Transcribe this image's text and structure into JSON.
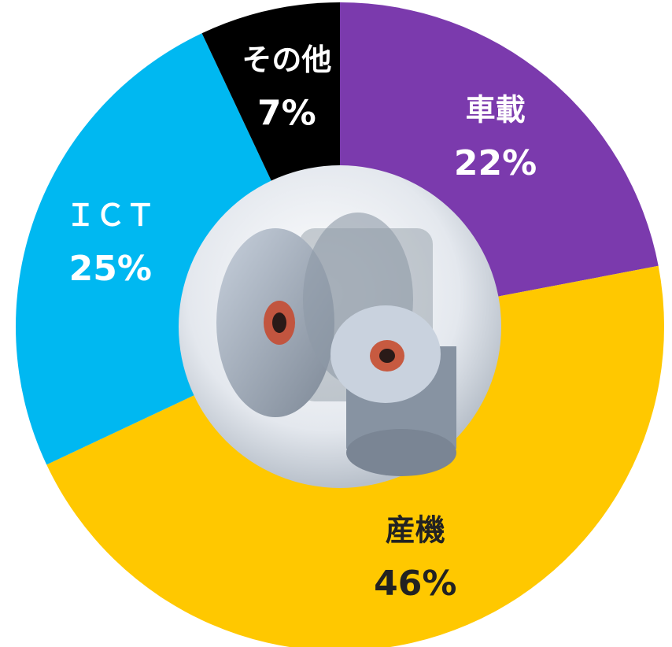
{
  "chart_data": {
    "type": "pie",
    "categories": [
      "車載",
      "産機",
      "ＩＣＴ",
      "その他"
    ],
    "values": [
      22,
      46,
      25,
      7
    ],
    "value_labels": [
      "22%",
      "46%",
      "25%",
      "7%"
    ],
    "colors": [
      "#7b3aad",
      "#ffc800",
      "#00b8f1",
      "#000000"
    ]
  }
}
